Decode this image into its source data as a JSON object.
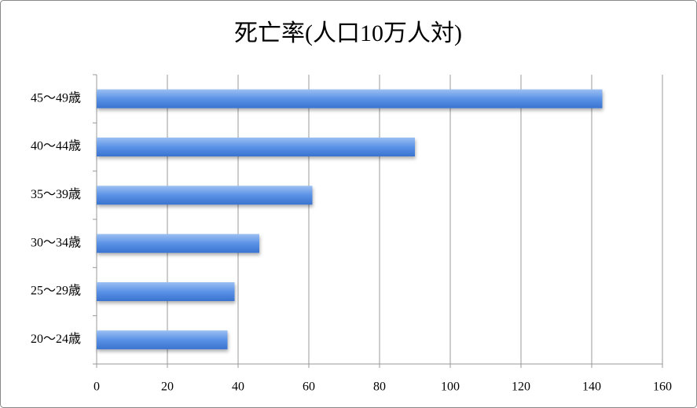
{
  "chart_data": {
    "type": "bar",
    "orientation": "horizontal",
    "title": "死亡率(人口10万人対)",
    "categories": [
      "20〜24歳",
      "25〜29歳",
      "30〜34歳",
      "35〜39歳",
      "40〜44歳",
      "45〜49歳"
    ],
    "values": [
      37,
      39,
      46,
      61,
      90,
      143
    ],
    "color": "#4a86e0",
    "xlim": [
      0,
      160
    ],
    "xticks": [
      0,
      20,
      40,
      60,
      80,
      100,
      120,
      140,
      160
    ],
    "grid": true
  }
}
